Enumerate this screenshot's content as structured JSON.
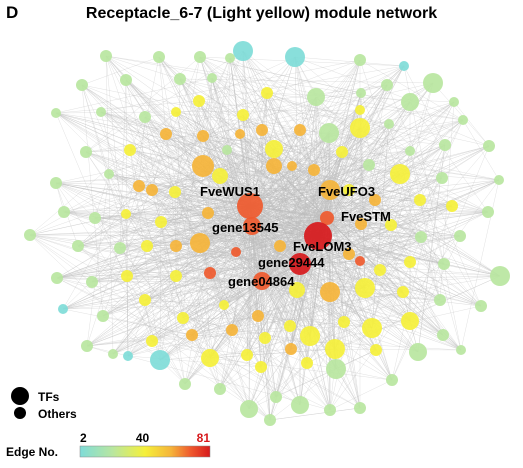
{
  "panel_letter": "D",
  "title": "Receptacle_6-7 (Light yellow) module network",
  "labels": [
    {
      "text": "FveWUS1",
      "node": "h1"
    },
    {
      "text": "FveUFO3",
      "node": "h2"
    },
    {
      "text": "FveSTM",
      "node": "h3"
    },
    {
      "text": "gene13545",
      "node": "h4"
    },
    {
      "text": "FveLOM3",
      "node": "h5"
    },
    {
      "text": "gene29444",
      "node": "h6"
    },
    {
      "text": "gene04864",
      "node": "h7"
    }
  ],
  "legend": {
    "tfs": "TFs",
    "others": "Others",
    "edge_title": "Edge No.",
    "ticks": [
      "2",
      "40",
      "81"
    ],
    "tick_values": [
      2,
      40,
      81
    ],
    "range": [
      2,
      81
    ]
  },
  "colors": {
    "scale": [
      "#7fdcd8",
      "#b8e6a0",
      "#f5f03a",
      "#f5b43a",
      "#ef5a2e",
      "#d7191c"
    ],
    "edge": "#bdbdbd"
  }
}
